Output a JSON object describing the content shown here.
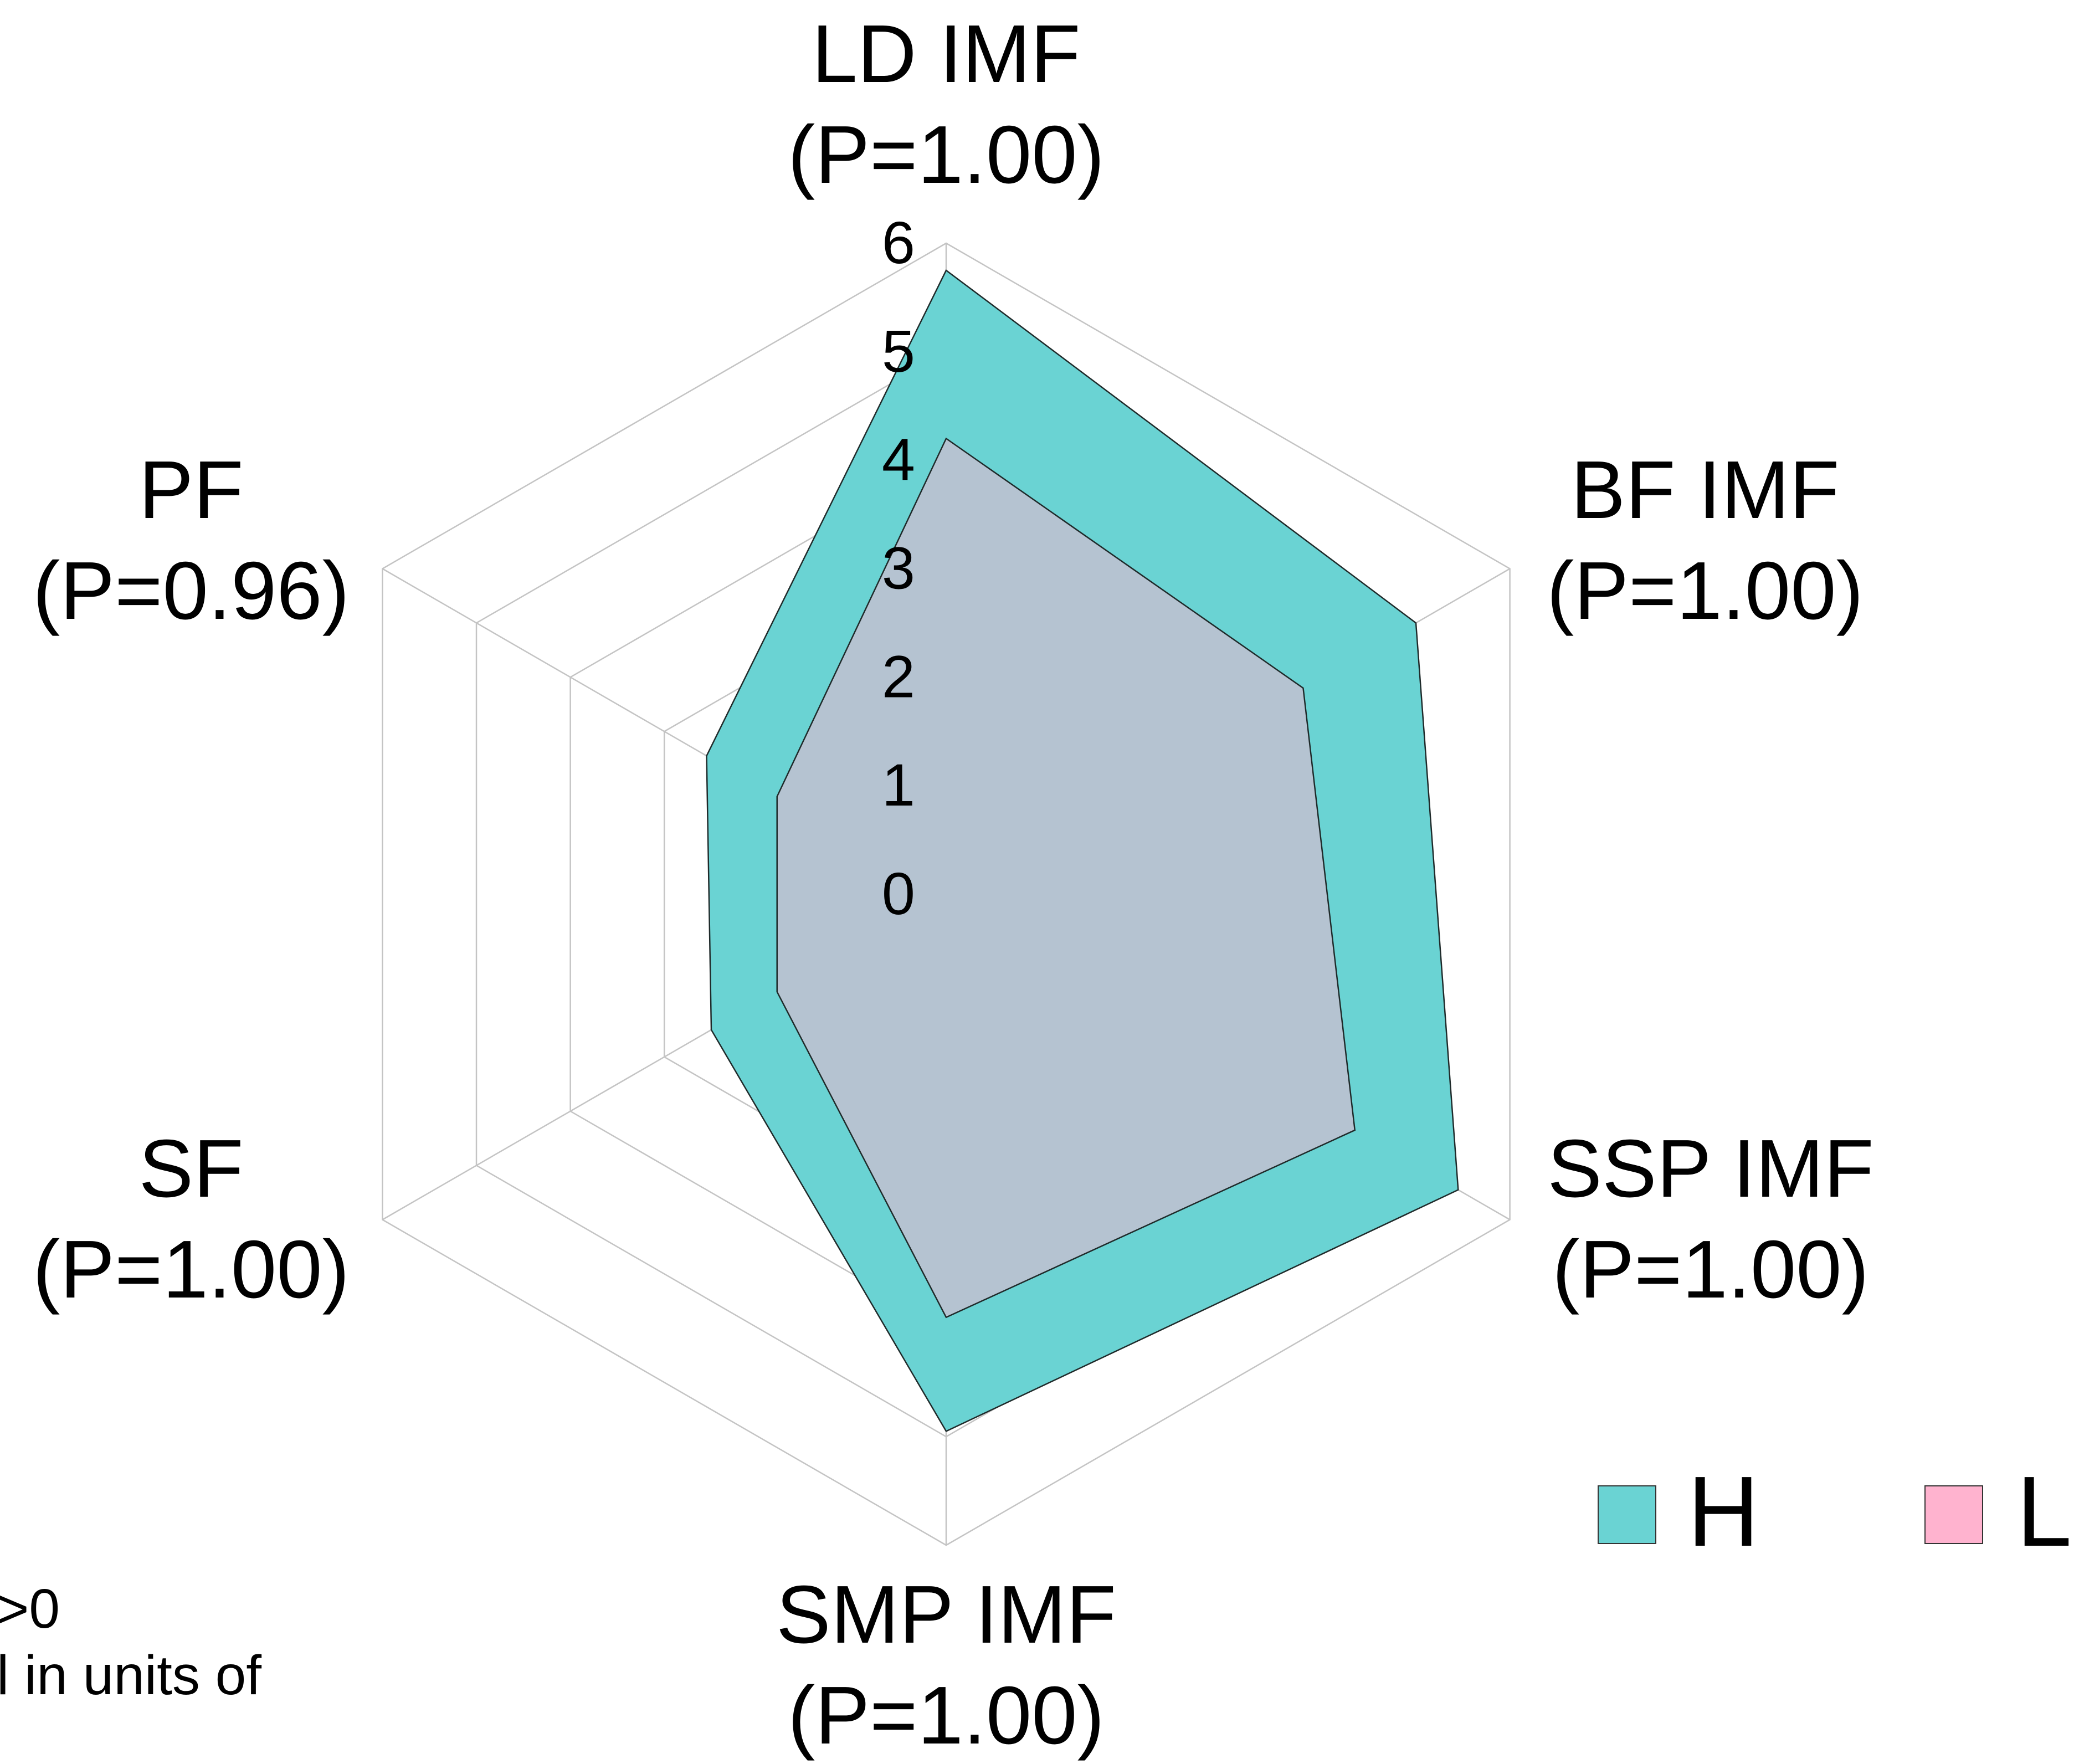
{
  "chart_data": {
    "type": "radar",
    "axes": [
      {
        "name": "LD IMF",
        "p_label": "(P=1.00)"
      },
      {
        "name": "BF IMF",
        "p_label": "(P=1.00)"
      },
      {
        "name": "SSP IMF",
        "p_label": "(P=1.00)"
      },
      {
        "name": "SMP IMF",
        "p_label": "(P=1.00)"
      },
      {
        "name": "SF",
        "p_label": "(P=1.00)"
      },
      {
        "name": "PF",
        "p_label": "(P=0.96)"
      }
    ],
    "rlim": [
      0,
      6
    ],
    "ticks": [
      "0",
      "1",
      "2",
      "3",
      "4",
      "5",
      "6"
    ],
    "grid": true,
    "series": [
      {
        "name": "H",
        "color": "#6ad3d3",
        "values": [
          5.75,
          5.0,
          5.45,
          4.95,
          2.5,
          2.55
        ]
      },
      {
        "name": "L",
        "color": "#ffb3cf",
        "values": [
          4.2,
          3.8,
          4.35,
          3.9,
          1.8,
          1.8
        ]
      }
    ],
    "legend": {
      "position": "bottom-right"
    },
    "footnote": {
      "lines": [
        ">0",
        "l in units of"
      ]
    }
  }
}
